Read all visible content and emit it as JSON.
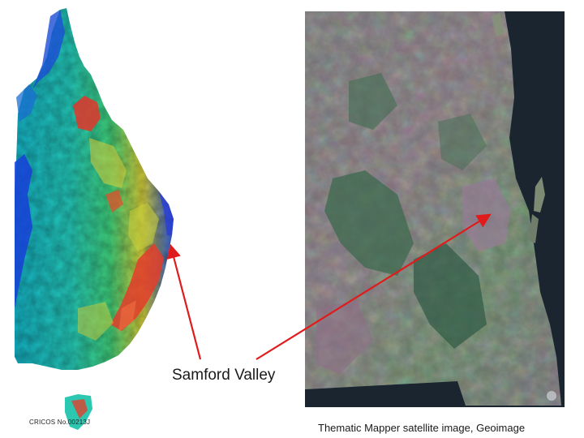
{
  "labels": {
    "location": "Samford Valley",
    "image_credit": "Thematic Mapper satellite image, Geoimage",
    "cricos": "CRICOS No.00213J"
  },
  "colors": {
    "arrow": "#e01b1b",
    "dem_low": "#0c2fd0",
    "dem_mid": "#2ec9c2",
    "dem_high": "#e63a28",
    "sea": "#1b2530"
  }
}
